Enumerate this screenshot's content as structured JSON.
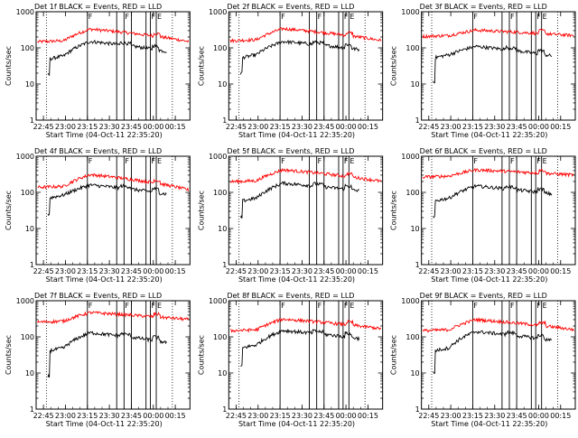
{
  "colors": {
    "events": "#000000",
    "lld": "#ff0000",
    "axis": "#000000"
  },
  "panels": [
    {
      "title": "Det 1f BLACK = Events, RED = LLD",
      "ylabel": "Counts/sec",
      "xlabel": "Start Time (04-Oct-11 22:35:20)",
      "ev_start": 18,
      "ev_mid": 60,
      "ev_peak": 150,
      "ev_end": 80,
      "lld_start": 150,
      "lld_peak": 330,
      "lld_end": 190
    },
    {
      "title": "Det 2f BLACK = Events, RED = LLD",
      "ylabel": "Counts/sec",
      "xlabel": "Start Time (04-Oct-11 22:35:20)",
      "ev_start": 20,
      "ev_mid": 65,
      "ev_peak": 150,
      "ev_end": 90,
      "lld_start": 160,
      "lld_peak": 340,
      "lld_end": 200
    },
    {
      "title": "Det 3f BLACK = Events, RED = LLD",
      "ylabel": "Counts/sec",
      "xlabel": "Start Time (04-Oct-11 22:35:20)",
      "ev_start": 12,
      "ev_mid": 65,
      "ev_peak": 110,
      "ev_end": 60,
      "lld_start": 210,
      "lld_peak": 310,
      "lld_end": 240
    },
    {
      "title": "Det 4f BLACK = Events, RED = LLD",
      "ylabel": "Counts/sec",
      "xlabel": "Start Time (04-Oct-11 22:35:20)",
      "ev_start": 25,
      "ev_mid": 85,
      "ev_peak": 160,
      "ev_end": 90,
      "lld_start": 140,
      "lld_peak": 310,
      "lld_end": 160
    },
    {
      "title": "Det 5f BLACK = Events, RED = LLD",
      "ylabel": "Counts/sec",
      "xlabel": "Start Time (04-Oct-11 22:35:20)",
      "ev_start": 20,
      "ev_mid": 70,
      "ev_peak": 180,
      "ev_end": 110,
      "lld_start": 200,
      "lld_peak": 420,
      "lld_end": 250
    },
    {
      "title": "Det 6f BLACK = Events, RED = LLD",
      "ylabel": "Counts/sec",
      "xlabel": "Start Time (04-Oct-11 22:35:20)",
      "ev_start": 20,
      "ev_mid": 70,
      "ev_peak": 150,
      "ev_end": 90,
      "lld_start": 270,
      "lld_peak": 420,
      "lld_end": 330
    },
    {
      "title": "Det 7f BLACK = Events, RED = LLD",
      "ylabel": "Counts/sec",
      "xlabel": "Start Time (04-Oct-11 22:35:20)",
      "ev_start": 8,
      "ev_mid": 50,
      "ev_peak": 130,
      "ev_end": 70,
      "lld_start": 260,
      "lld_peak": 470,
      "lld_end": 340
    },
    {
      "title": "Det 8f BLACK = Events, RED = LLD",
      "ylabel": "Counts/sec",
      "xlabel": "Start Time (04-Oct-11 22:35:20)",
      "ev_start": 15,
      "ev_mid": 60,
      "ev_peak": 150,
      "ev_end": 90,
      "lld_start": 150,
      "lld_peak": 310,
      "lld_end": 200
    },
    {
      "title": "Det 9f BLACK = Events, RED = LLD",
      "ylabel": "Counts/sec",
      "xlabel": "Start Time (04-Oct-11 22:35:20)",
      "ev_start": 10,
      "ev_mid": 50,
      "ev_peak": 140,
      "ev_end": 80,
      "lld_start": 150,
      "lld_peak": 300,
      "lld_end": 190
    }
  ],
  "chart_data": {
    "type": "line",
    "x_ticks": [
      "22:45",
      "23:00",
      "23:15",
      "23:30",
      "23:45",
      "00:00",
      "00:15"
    ],
    "x_range_minutes": [
      -5,
      100
    ],
    "y_ticks": [
      "1",
      "10",
      "100",
      "1000"
    ],
    "ylim": [
      1,
      1000
    ],
    "y_scale": "log",
    "dotted_lines_minutes": [
      2,
      88
    ],
    "marker_lines_minutes": [
      30,
      50,
      55,
      60,
      70,
      73,
      77
    ],
    "marker_labels": [
      {
        "text": "F",
        "minutes": 30
      },
      {
        "text": "F",
        "minutes": 55
      },
      {
        "text": "F",
        "minutes": 73
      },
      {
        "text": "E",
        "minutes": 77
      }
    ],
    "series": [
      {
        "name": "BLACK = Events",
        "color": "#000000"
      },
      {
        "name": "RED = LLD",
        "color": "#ff0000"
      }
    ]
  }
}
